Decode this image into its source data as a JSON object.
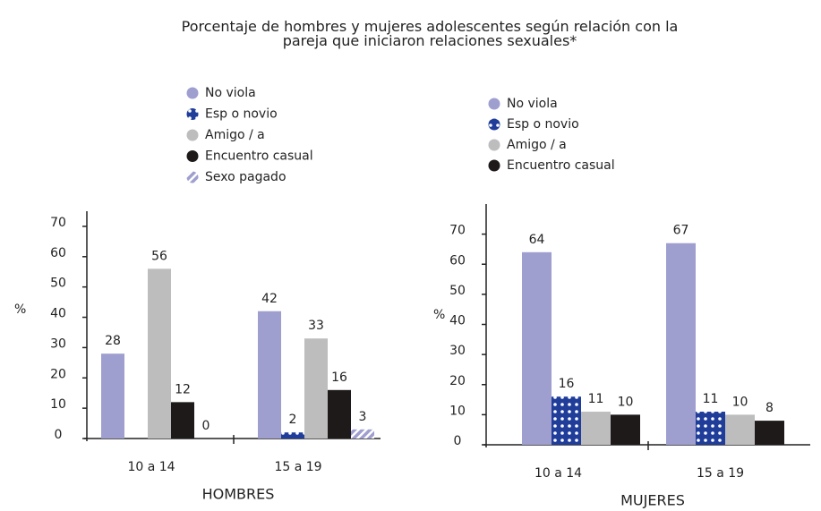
{
  "title": "Porcentaje de hombres y mujeres adolescentes según relación con la pareja que iniciaron relaciones sexuales*",
  "chart_data": [
    {
      "type": "bar",
      "title": "HOMBRES",
      "ylabel": "%",
      "categories": [
        "10 a 14",
        "15 a 19"
      ],
      "series": [
        {
          "name": "No viola",
          "color": "#9e9fcf",
          "values": [
            28,
            42
          ]
        },
        {
          "name": "Esp o novio",
          "color": "#1f3d99",
          "pattern": "dots",
          "values": [
            null,
            2
          ]
        },
        {
          "name": "Amigo / a",
          "color": "#bdbdbd",
          "values": [
            56,
            33
          ]
        },
        {
          "name": "Encuentro casual",
          "color": "#1f1a1a",
          "values": [
            12,
            16
          ]
        },
        {
          "name": "Sexo pagado",
          "color": "#9e9fcf",
          "pattern": "stripes",
          "values": [
            0,
            3
          ]
        }
      ],
      "ylim": [
        0,
        75
      ],
      "yticks": [
        0,
        10,
        20,
        30,
        40,
        50,
        60,
        70
      ]
    },
    {
      "type": "bar",
      "title": "MUJERES",
      "ylabel": "%",
      "categories": [
        "10 a 14",
        "15 a 19"
      ],
      "series": [
        {
          "name": "No viola",
          "color": "#9e9fcf",
          "values": [
            64,
            67
          ]
        },
        {
          "name": "Esp o novio",
          "color": "#1f3d99",
          "pattern": "dots",
          "values": [
            16,
            11
          ]
        },
        {
          "name": "Amigo / a",
          "color": "#bdbdbd",
          "values": [
            11,
            10
          ]
        },
        {
          "name": "Encuentro casual",
          "color": "#1f1a1a",
          "values": [
            10,
            8
          ]
        }
      ],
      "ylim": [
        0,
        80
      ],
      "yticks": [
        0,
        10,
        20,
        30,
        40,
        50,
        60,
        70
      ]
    }
  ]
}
